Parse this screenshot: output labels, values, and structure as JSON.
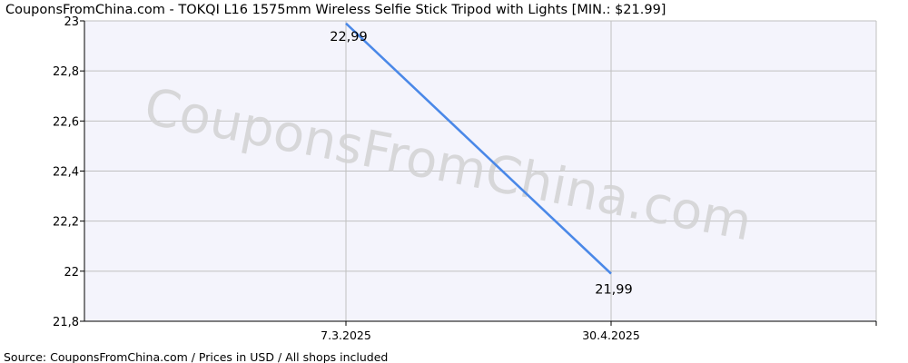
{
  "chart_data": {
    "type": "line",
    "title": "CouponsFromChina.com - TOKQI L16 1575mm Wireless Selfie Stick Tripod with Lights [MIN.: $21.99]",
    "watermark": "CouponsFromChina.com",
    "source": "Source: CouponsFromChina.com / Prices in USD / All shops included",
    "categories": [
      "7.3.2025",
      "30.4.2025"
    ],
    "series": [
      {
        "values": [
          22.99,
          21.99
        ],
        "labels": [
          "22,99",
          "21,99"
        ],
        "color": "#4a88e8"
      }
    ],
    "ylim": [
      21.8,
      23
    ],
    "yticks": [
      21.8,
      22,
      22.2,
      22.4,
      22.6,
      22.8,
      23
    ],
    "ytick_labels": [
      "21,8",
      "22",
      "22,2",
      "22,4",
      "22,6",
      "22,8",
      "23"
    ],
    "grid": true,
    "colors": {
      "plot_bg": "#f4f4fc",
      "grid": "#c0c0c0",
      "line": "#4a88e8",
      "text": "#000000",
      "watermark": "#d3d3d3"
    }
  }
}
